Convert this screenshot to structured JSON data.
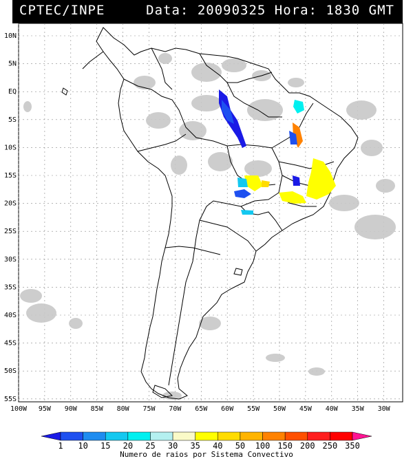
{
  "header": {
    "source": "CPTEC/INPE",
    "date_label": "Data:",
    "date": "20090325",
    "time_label": "Hora:",
    "time": "1830",
    "tz": "GMT"
  },
  "axes": {
    "lat_ticks": [
      "10N",
      "5N",
      "EQ",
      "5S",
      "10S",
      "15S",
      "20S",
      "25S",
      "30S",
      "35S",
      "40S",
      "45S",
      "50S",
      "55S"
    ],
    "lon_ticks": [
      "100W",
      "95W",
      "90W",
      "85W",
      "80W",
      "75W",
      "70W",
      "65W",
      "60W",
      "55W",
      "50W",
      "45W",
      "40W",
      "35W",
      "30W"
    ]
  },
  "colorbar": {
    "title": "Numero de raios por Sistema Convectivo",
    "labels": [
      "1",
      "10",
      "15",
      "20",
      "25",
      "30",
      "35",
      "40",
      "50",
      "100",
      "150",
      "200",
      "250",
      "350"
    ],
    "colors": [
      "#1a1ae6",
      "#1e50f0",
      "#1e8cf0",
      "#14c8f0",
      "#00f0f0",
      "#b4f0f0",
      "#fafac8",
      "#ffff00",
      "#ffdc00",
      "#ffb400",
      "#ff8200",
      "#ff5000",
      "#ff1e1e",
      "#ff0000",
      "#ff1493"
    ]
  },
  "map_colors": {
    "coast": "#000000",
    "cloud": "#c8c8c8",
    "grid": "#888888"
  }
}
